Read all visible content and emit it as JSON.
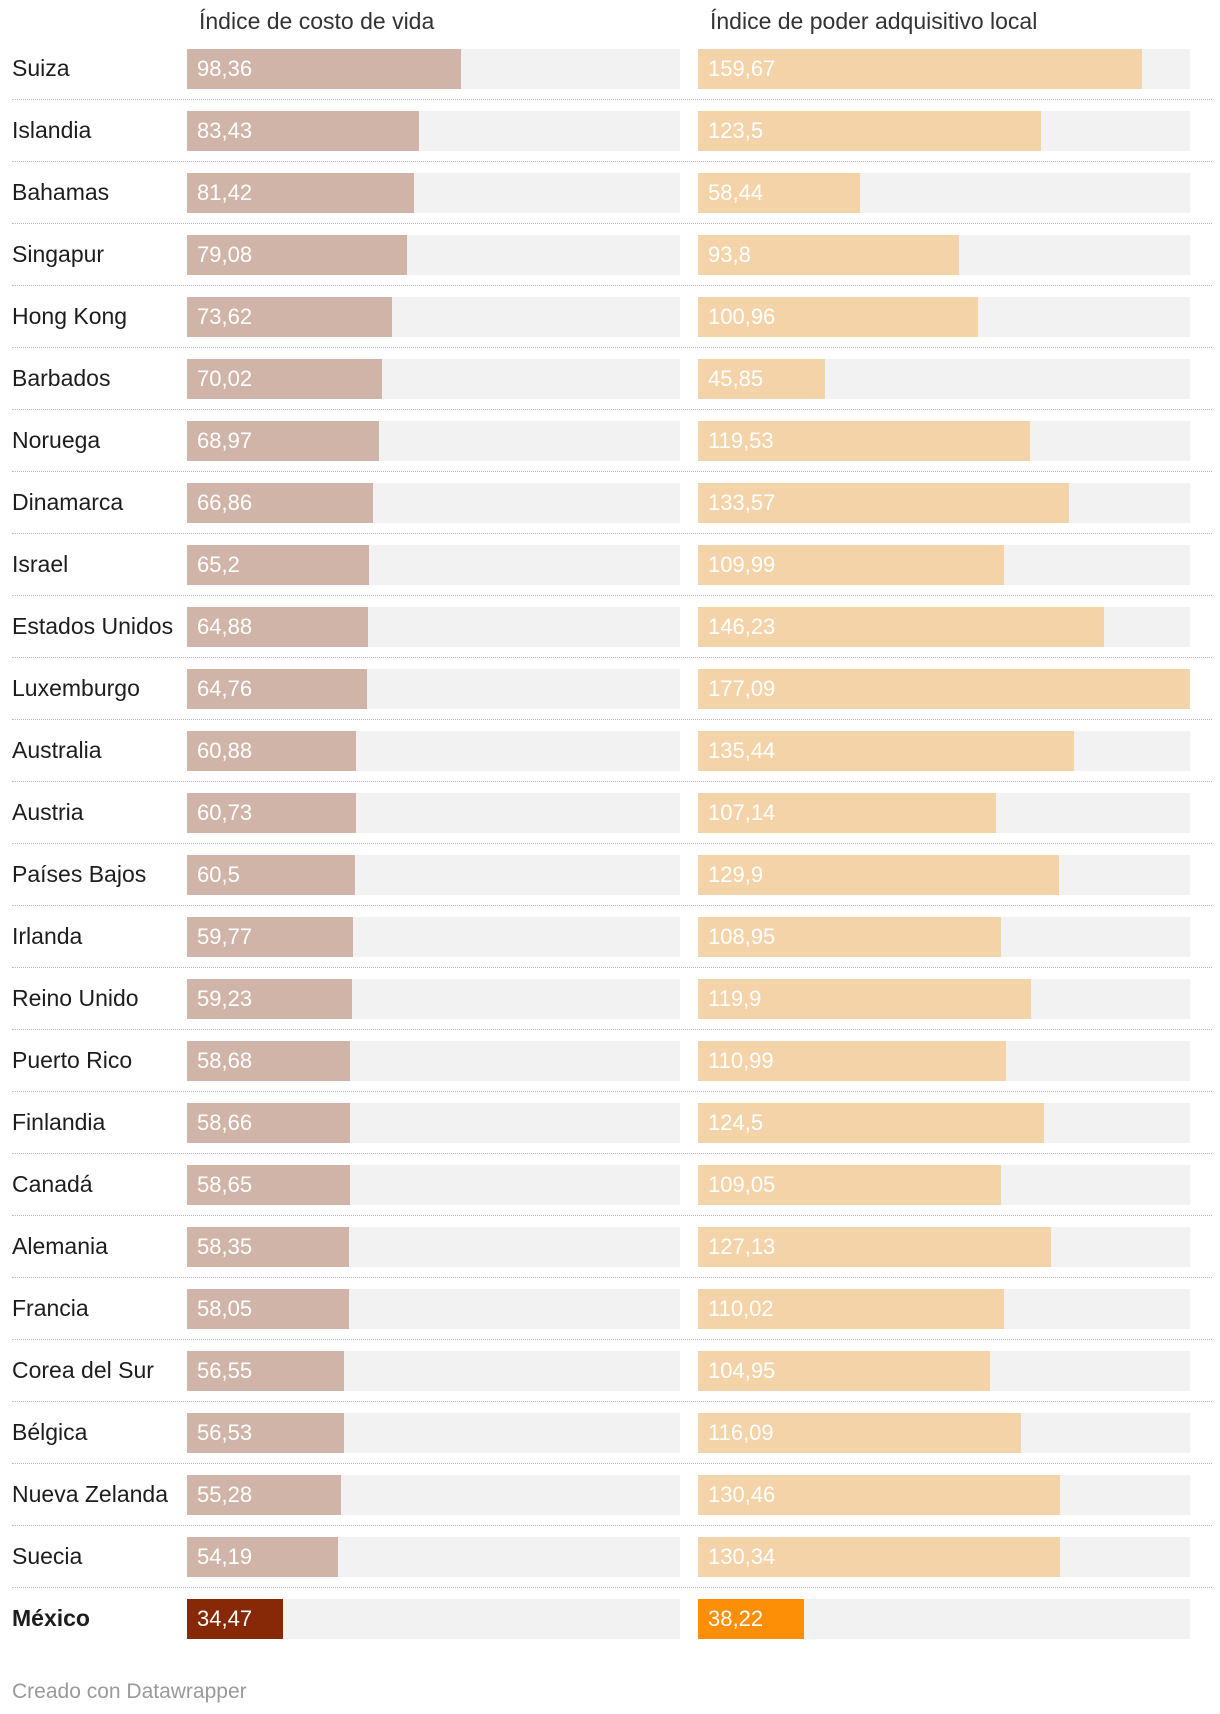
{
  "chart_data": {
    "type": "bar",
    "orientation": "horizontal",
    "series": [
      {
        "name": "Índice de costo de vida",
        "values": [
          98.36,
          83.43,
          81.42,
          79.08,
          73.62,
          70.02,
          68.97,
          66.86,
          65.2,
          64.88,
          64.76,
          60.88,
          60.73,
          60.5,
          59.77,
          59.23,
          58.68,
          58.66,
          58.65,
          58.35,
          58.05,
          56.55,
          56.53,
          55.28,
          54.19,
          34.47
        ],
        "labels": [
          "98,36",
          "83,43",
          "81,42",
          "79,08",
          "73,62",
          "70,02",
          "68,97",
          "66,86",
          "65,2",
          "64,88",
          "64,76",
          "60,88",
          "60,73",
          "60,5",
          "59,77",
          "59,23",
          "58,68",
          "58,66",
          "58,65",
          "58,35",
          "58,05",
          "56,55",
          "56,53",
          "55,28",
          "54,19",
          "34,47"
        ],
        "xlim": [
          0,
          177.09
        ],
        "color": "#d1b4a8",
        "highlight_color": "#872806"
      },
      {
        "name": "Índice de poder adquisitivo local",
        "values": [
          159.67,
          123.5,
          58.44,
          93.8,
          100.96,
          45.85,
          119.53,
          133.57,
          109.99,
          146.23,
          177.09,
          135.44,
          107.14,
          129.9,
          108.95,
          119.9,
          110.99,
          124.5,
          109.05,
          127.13,
          110.02,
          104.95,
          116.09,
          130.46,
          130.34,
          38.22
        ],
        "labels": [
          "159,67",
          "123,5",
          "58,44",
          "93,8",
          "100,96",
          "45,85",
          "119,53",
          "133,57",
          "109,99",
          "146,23",
          "177,09",
          "135,44",
          "107,14",
          "129,9",
          "108,95",
          "119,9",
          "110,99",
          "124,5",
          "109,05",
          "127,13",
          "110,02",
          "104,95",
          "116,09",
          "130,46",
          "130,34",
          "38,22"
        ],
        "xlim": [
          0,
          177.09
        ],
        "color": "#f5d3a8",
        "highlight_color": "#fc8f06"
      }
    ],
    "categories": [
      "Suiza",
      "Islandia",
      "Bahamas",
      "Singapur",
      "Hong Kong",
      "Barbados",
      "Noruega",
      "Dinamarca",
      "Israel",
      "Estados Unidos",
      "Luxemburgo",
      "Australia",
      "Austria",
      "Países Bajos",
      "Irlanda",
      "Reino Unido",
      "Puerto Rico",
      "Finlandia",
      "Canadá",
      "Alemania",
      "Francia",
      "Corea del Sur",
      "Bélgica",
      "Nueva Zelanda",
      "Suecia",
      "México"
    ],
    "highlight_category": "México",
    "track_color": "#f2f2f2",
    "footer": "Creado con Datawrapper"
  }
}
